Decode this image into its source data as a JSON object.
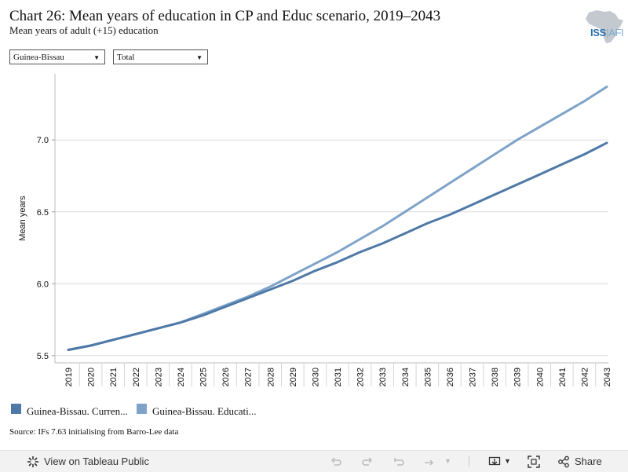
{
  "header": {
    "title": "Chart 26: Mean years of education in CP and Educ scenario, 2019–2043",
    "subtitle": "Mean years of adult (+15) education",
    "logo_text": "ISS",
    "logo_suffix": "AFI"
  },
  "filters": {
    "country": "Guinea-Bissau",
    "measure": "Total"
  },
  "chart_data": {
    "type": "line",
    "x": [
      2019,
      2020,
      2021,
      2022,
      2023,
      2024,
      2025,
      2026,
      2027,
      2028,
      2029,
      2030,
      2031,
      2032,
      2033,
      2034,
      2035,
      2036,
      2037,
      2038,
      2039,
      2040,
      2041,
      2042,
      2043
    ],
    "series": [
      {
        "name": "Guinea-Bissau. Curren...",
        "color": "#4e79a7",
        "values": [
          5.54,
          5.57,
          5.61,
          5.65,
          5.69,
          5.73,
          5.78,
          5.84,
          5.9,
          5.96,
          6.02,
          6.09,
          6.15,
          6.22,
          6.28,
          6.35,
          6.42,
          6.48,
          6.55,
          6.62,
          6.69,
          6.76,
          6.83,
          6.9,
          6.98
        ]
      },
      {
        "name": "Guinea-Bissau. Educati...",
        "color": "#7fa3c8",
        "values": [
          5.54,
          5.57,
          5.61,
          5.65,
          5.69,
          5.73,
          5.79,
          5.85,
          5.91,
          5.98,
          6.06,
          6.14,
          6.22,
          6.31,
          6.4,
          6.5,
          6.6,
          6.7,
          6.8,
          6.9,
          7.0,
          7.09,
          7.18,
          7.27,
          7.37
        ]
      }
    ],
    "ylabel": "Mean years",
    "xlabel": "",
    "yticks": [
      5.5,
      6.0,
      6.5,
      7.0
    ],
    "ytick_labels": [
      "5.5",
      "6.0",
      "6.5",
      "7.0"
    ],
    "ylim": [
      5.45,
      7.46
    ],
    "grid": true,
    "legend_position": "bottom-left"
  },
  "source": "Source: IFs 7.63 initialising from Barro-Lee data",
  "toolbar": {
    "view_label": "View on Tableau Public",
    "share_label": "Share"
  }
}
